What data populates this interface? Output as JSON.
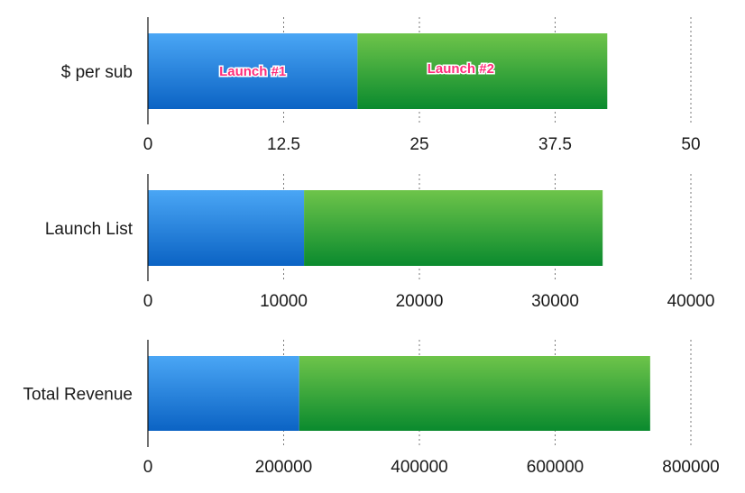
{
  "chart_data": [
    {
      "type": "bar",
      "orientation": "horizontal",
      "stacked": true,
      "categories": [
        "$ per sub"
      ],
      "series": [
        {
          "name": "Launch #1",
          "values": [
            19.3
          ]
        },
        {
          "name": "Launch #2",
          "values": [
            23.0
          ]
        }
      ],
      "xlim": [
        0,
        50
      ],
      "ticks": [
        "0",
        "12.5",
        "25",
        "37.5",
        "50"
      ],
      "tick_values": [
        0,
        12.5,
        25,
        37.5,
        50
      ],
      "grid": true
    },
    {
      "type": "bar",
      "orientation": "horizontal",
      "stacked": true,
      "categories": [
        "Launch List"
      ],
      "series": [
        {
          "values": [
            11500
          ]
        },
        {
          "values": [
            22000
          ]
        }
      ],
      "xlim": [
        0,
        40000
      ],
      "ticks": [
        "0",
        "10000",
        "20000",
        "30000",
        "40000"
      ],
      "tick_values": [
        0,
        10000,
        20000,
        30000,
        40000
      ],
      "grid": true
    },
    {
      "type": "bar",
      "orientation": "horizontal",
      "stacked": true,
      "categories": [
        "Total Revenue"
      ],
      "series": [
        {
          "values": [
            223000
          ]
        },
        {
          "values": [
            517000
          ]
        }
      ],
      "xlim": [
        0,
        800000
      ],
      "ticks": [
        "0",
        "200000",
        "400000",
        "600000",
        "800000"
      ],
      "tick_values": [
        0,
        200000,
        400000,
        600000,
        800000
      ],
      "grid": true
    }
  ],
  "colors": {
    "series_1_top": "#4aa6f5",
    "series_1_bottom": "#0b63c4",
    "series_2_top": "#6ec44a",
    "series_2_bottom": "#0a8a2e",
    "grid": "#7a7a7a",
    "axis": "#111111"
  }
}
